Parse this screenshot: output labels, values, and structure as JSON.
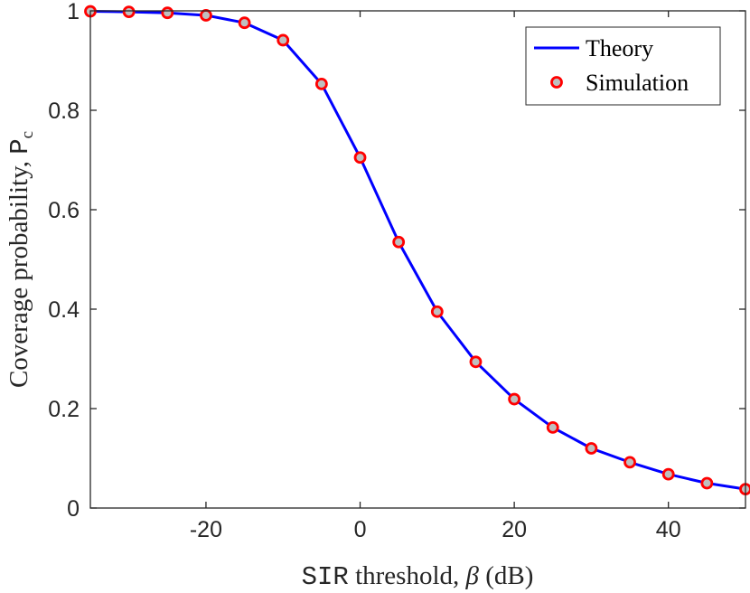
{
  "chart_data": {
    "type": "line",
    "x": [
      -35,
      -30,
      -25,
      -20,
      -15,
      -10,
      -5,
      0,
      5,
      10,
      15,
      20,
      25,
      30,
      35,
      40,
      45,
      50
    ],
    "series": [
      {
        "name": "Theory",
        "style": "line",
        "color": "#0000ff",
        "values": [
          0.999,
          0.998,
          0.996,
          0.991,
          0.976,
          0.941,
          0.853,
          0.705,
          0.535,
          0.395,
          0.294,
          0.219,
          0.162,
          0.12,
          0.092,
          0.068,
          0.05,
          0.038
        ]
      },
      {
        "name": "Simulation",
        "style": "markers",
        "marker_edge_color": "#ff0000",
        "marker_face_color": "#bfbfbf",
        "values": [
          0.999,
          0.998,
          0.996,
          0.991,
          0.976,
          0.941,
          0.853,
          0.705,
          0.535,
          0.395,
          0.294,
          0.219,
          0.162,
          0.12,
          0.092,
          0.068,
          0.05,
          0.038
        ]
      }
    ],
    "xlim": [
      -35,
      50
    ],
    "ylim": [
      0,
      1
    ],
    "xticks": [
      -20,
      0,
      20,
      40
    ],
    "xtick_labels": [
      "-20",
      "0",
      "20",
      "40"
    ],
    "yticks": [
      0,
      0.2,
      0.4,
      0.6,
      0.8,
      1
    ],
    "ytick_labels": [
      "0",
      "0.2",
      "0.4",
      "0.6",
      "0.8",
      "1"
    ],
    "xlabel_mono": "SIR",
    "xlabel_rest": " threshold, ",
    "xlabel_symbol": "β",
    "xlabel_unit": " (dB)",
    "ylabel_main": "Coverage probability, ",
    "ylabel_symbol": "P",
    "ylabel_sub": "c",
    "legend_position": "top-right",
    "grid": false,
    "title": ""
  }
}
